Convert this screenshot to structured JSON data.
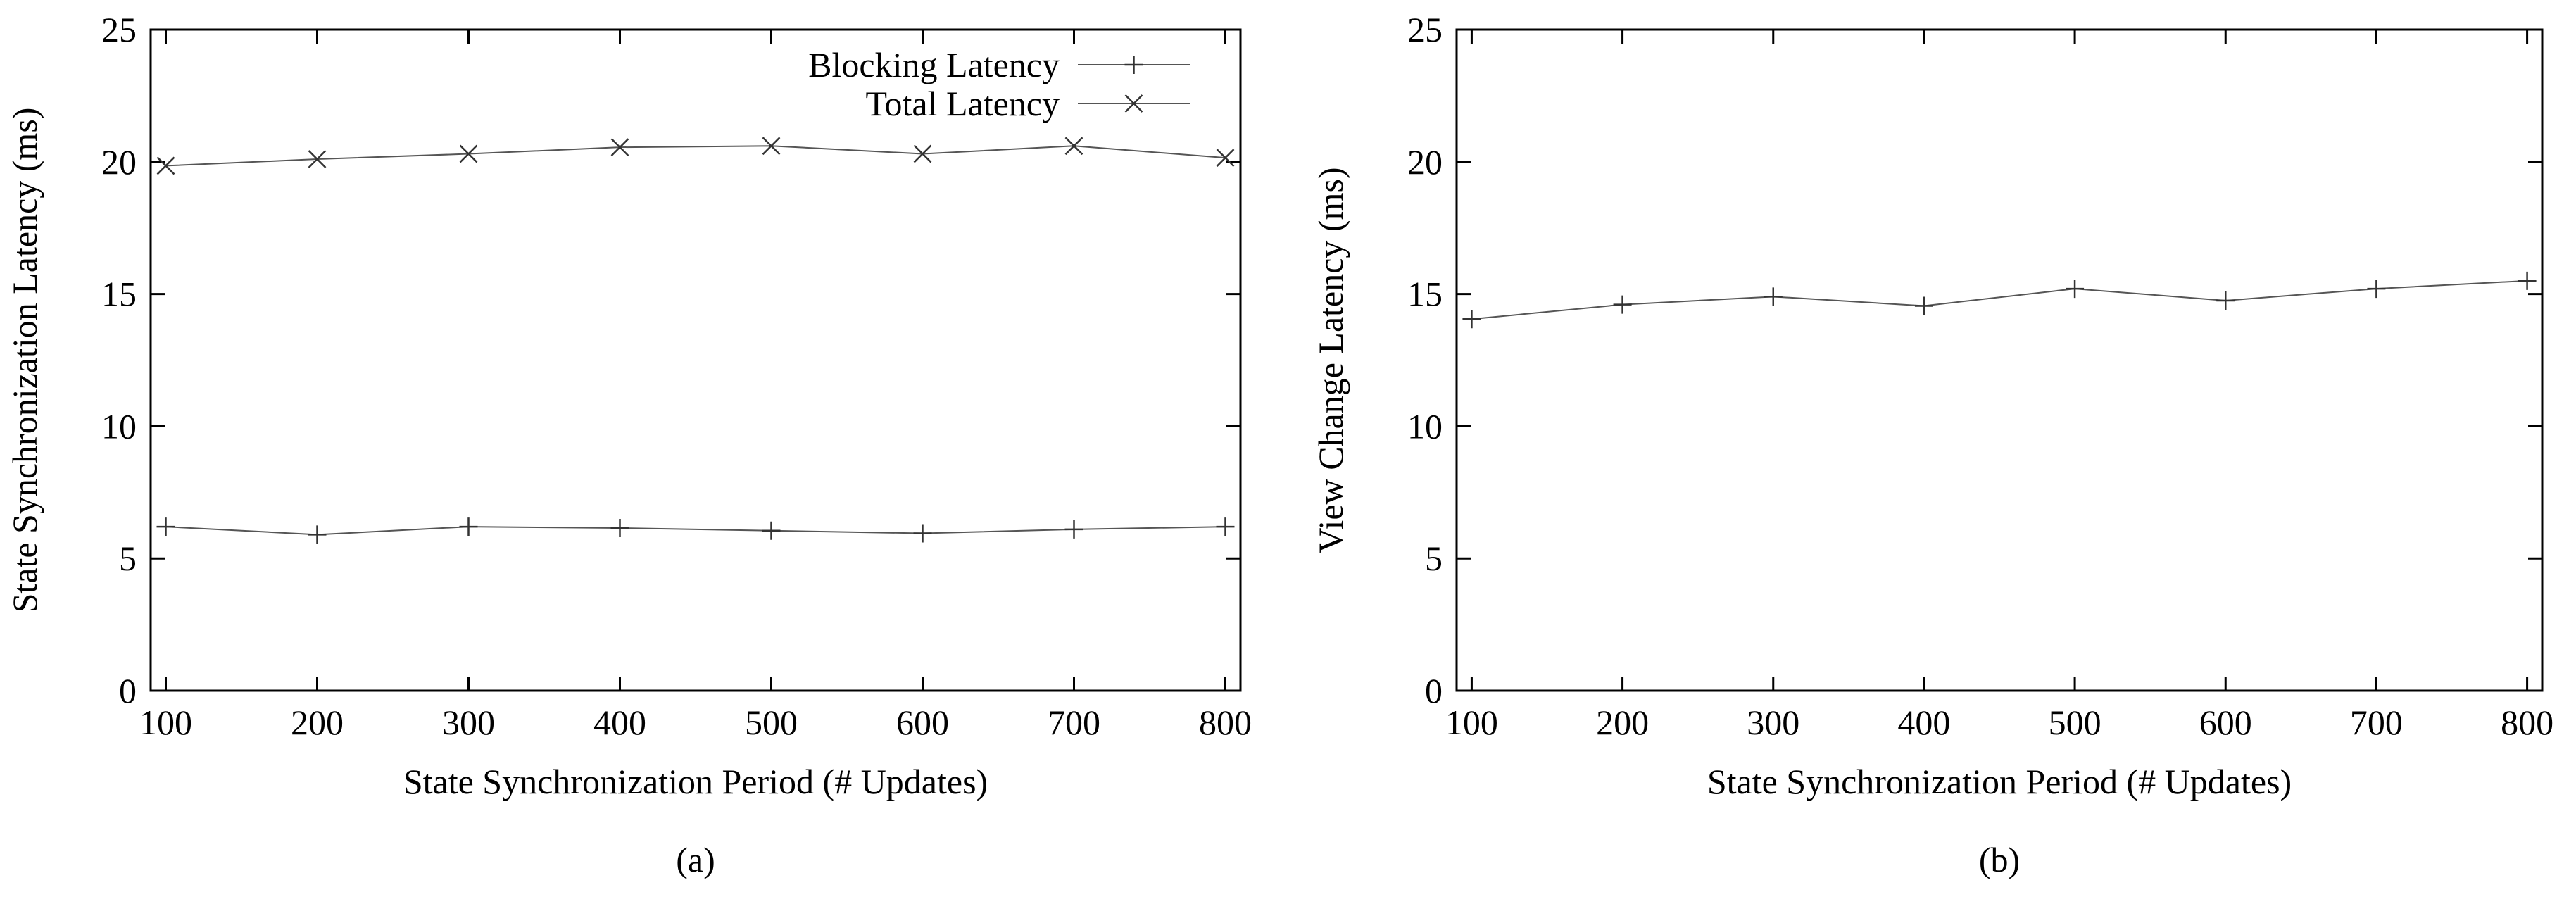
{
  "chart_data": [
    {
      "type": "line",
      "caption": "(a)",
      "xlabel": "State Synchronization Period (# Updates)",
      "ylabel": "State Synchronization Latency (ms)",
      "xlim": [
        90,
        810
      ],
      "ylim": [
        0,
        25
      ],
      "xticks": [
        100,
        200,
        300,
        400,
        500,
        600,
        700,
        800
      ],
      "yticks": [
        0,
        5,
        10,
        15,
        20,
        25
      ],
      "grid": false,
      "legend_position": "top-right",
      "x": [
        100,
        200,
        300,
        400,
        500,
        600,
        700,
        800
      ],
      "series": [
        {
          "name": "Blocking Latency",
          "marker": "plus",
          "values": [
            6.2,
            5.9,
            6.2,
            6.15,
            6.05,
            5.95,
            6.1,
            6.2
          ]
        },
        {
          "name": "Total Latency",
          "marker": "cross",
          "values": [
            19.85,
            20.1,
            20.3,
            20.55,
            20.6,
            20.3,
            20.6,
            20.15
          ]
        }
      ]
    },
    {
      "type": "line",
      "caption": "(b)",
      "xlabel": "State Synchronization Period (# Updates)",
      "ylabel": "View Change Latency (ms)",
      "xlim": [
        90,
        810
      ],
      "ylim": [
        0,
        25
      ],
      "xticks": [
        100,
        200,
        300,
        400,
        500,
        600,
        700,
        800
      ],
      "yticks": [
        0,
        5,
        10,
        15,
        20,
        25
      ],
      "grid": false,
      "x": [
        100,
        200,
        300,
        400,
        500,
        600,
        700,
        800
      ],
      "series": [
        {
          "marker": "plus",
          "values": [
            14.05,
            14.6,
            14.9,
            14.55,
            15.2,
            14.75,
            15.2,
            15.5
          ]
        }
      ]
    }
  ]
}
